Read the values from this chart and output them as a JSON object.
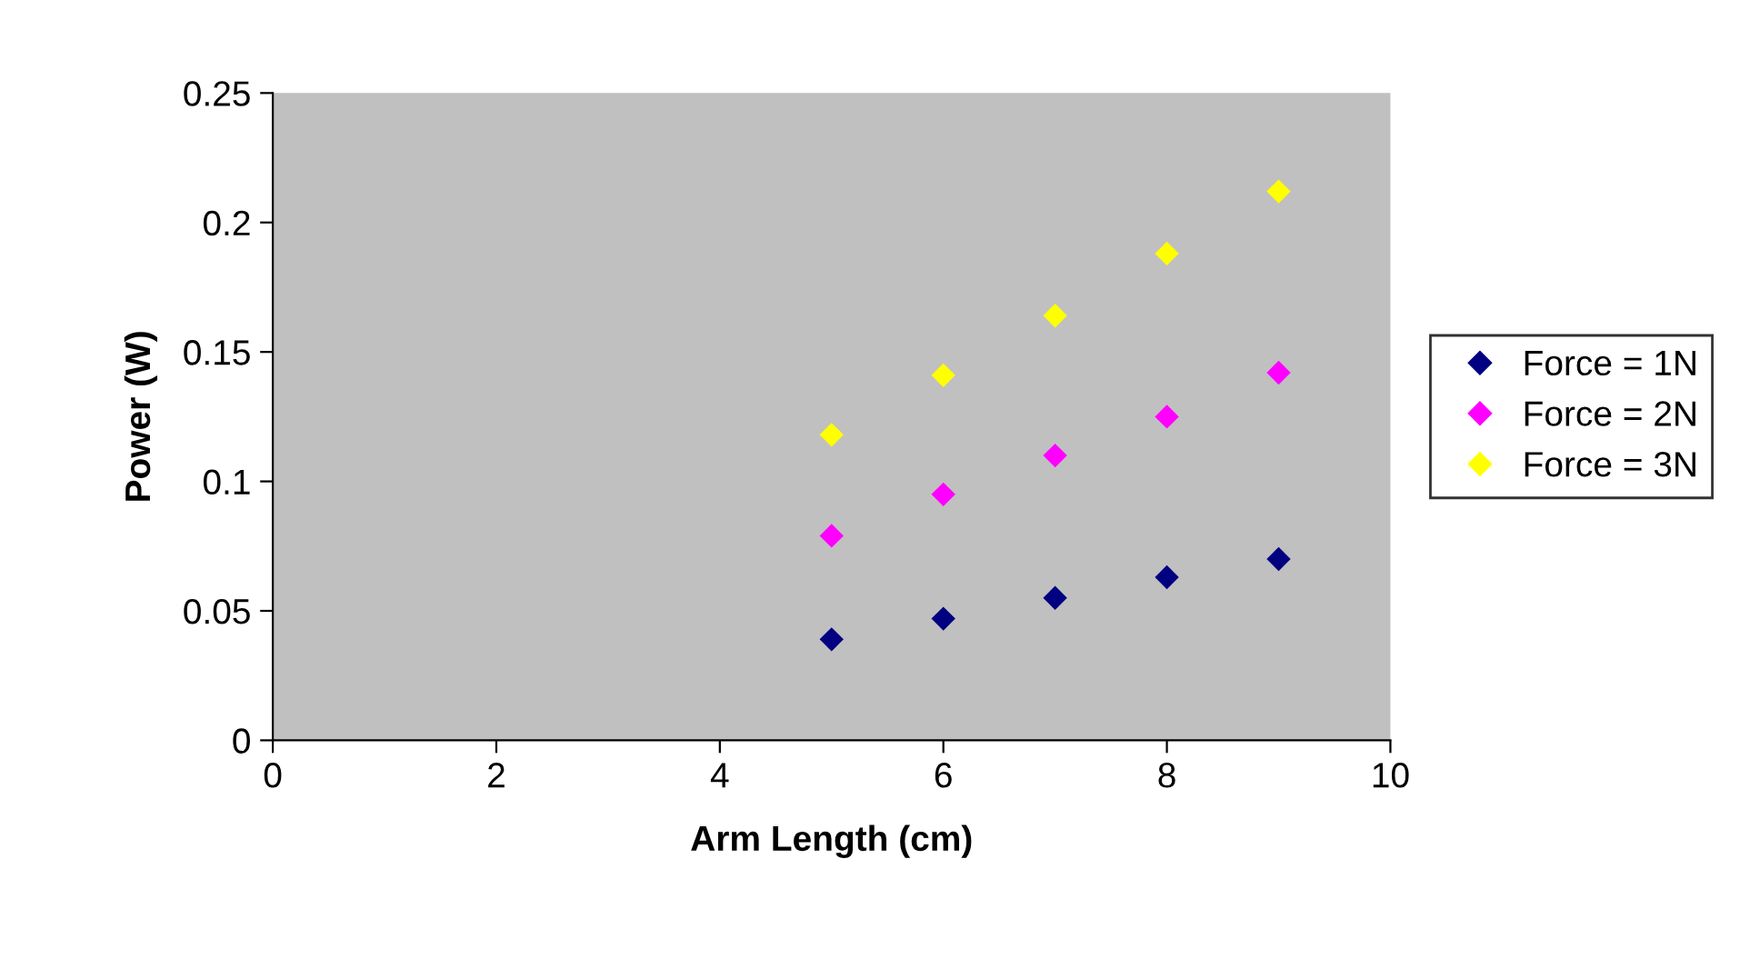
{
  "chart_data": {
    "type": "scatter",
    "xlabel": "Arm Length (cm)",
    "ylabel": "Power (W)",
    "x": [
      5,
      6,
      7,
      8,
      9
    ],
    "series": [
      {
        "name": "Force = 1N",
        "color": "#000080",
        "values": [
          0.039,
          0.047,
          0.055,
          0.063,
          0.07
        ]
      },
      {
        "name": "Force = 2N",
        "color": "#ff00ff",
        "values": [
          0.079,
          0.095,
          0.11,
          0.125,
          0.142
        ]
      },
      {
        "name": "Force = 3N",
        "color": "#ffff00",
        "values": [
          0.118,
          0.141,
          0.164,
          0.188,
          0.212
        ]
      }
    ],
    "xlim": [
      0,
      10
    ],
    "xticks": [
      0,
      2,
      4,
      6,
      8,
      10
    ],
    "ylim": [
      0,
      0.25
    ],
    "yticks": [
      0,
      0.05,
      0.1,
      0.15,
      0.2,
      0.25
    ],
    "grid": false,
    "legend": "right",
    "marker": "diamond"
  }
}
